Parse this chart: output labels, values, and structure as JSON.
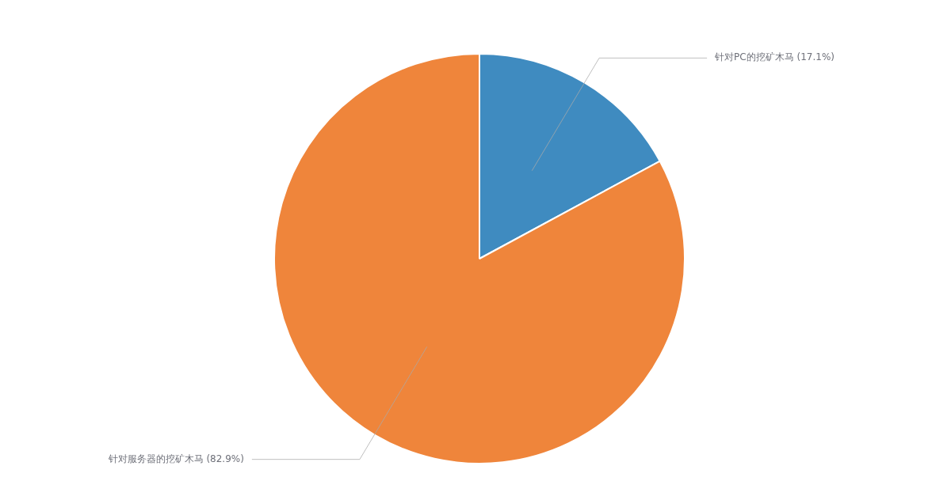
{
  "chart_data": {
    "type": "pie",
    "categories": [
      "针对PC的挖矿木马",
      "针对服务器的挖矿木马"
    ],
    "values": [
      17.1,
      82.9
    ],
    "colors": [
      "#3f8bc0",
      "#ef853b"
    ],
    "value_labels": [
      "(17.1%)",
      "(82.9%)"
    ],
    "legend": false
  }
}
